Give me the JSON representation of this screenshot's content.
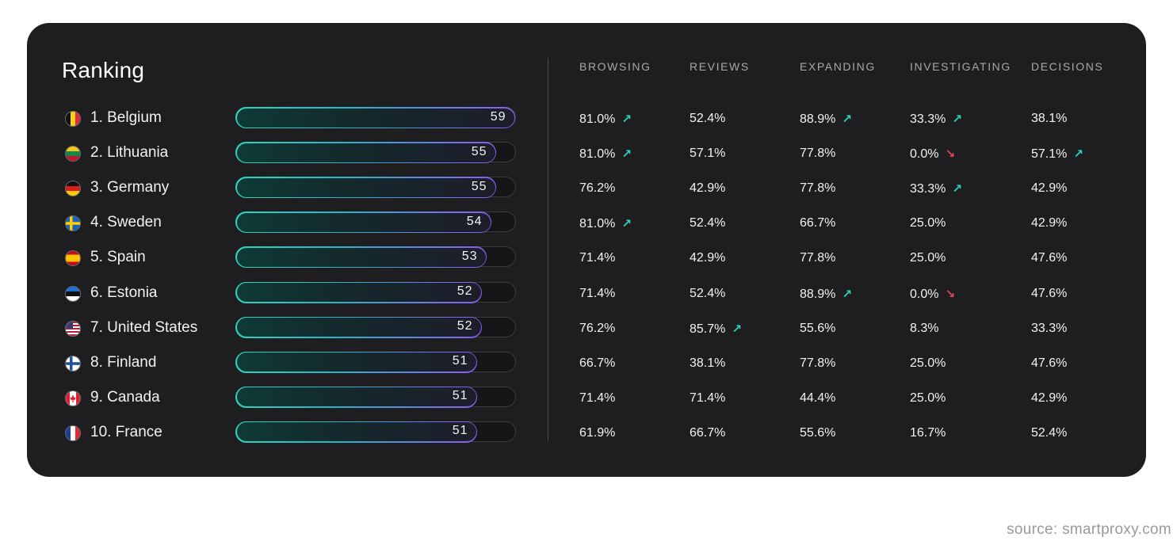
{
  "title": "Ranking",
  "source": "source: smartproxy.com",
  "colors": {
    "up": "#2ed3c0",
    "down": "#e0465e",
    "bar_start": "#2ed3c0",
    "bar_end": "#8a5cf0"
  },
  "columns": [
    "BROWSING",
    "REVIEWS",
    "EXPANDING",
    "INVESTIGATING",
    "DECISIONS"
  ],
  "chart_data": {
    "type": "bar",
    "title": "Ranking",
    "ylim": [
      0,
      59
    ],
    "categories": [
      "1. Belgium",
      "2. Lithuania",
      "3. Germany",
      "4. Sweden",
      "5. Spain",
      "6. Estonia",
      "7. United States",
      "8. Finland",
      "9. Canada",
      "10. France"
    ],
    "values": [
      59,
      55,
      55,
      54,
      53,
      52,
      52,
      51,
      51,
      51
    ]
  },
  "rows": [
    {
      "label": "1. Belgium",
      "flag": "belgium-flag-icon",
      "score": "59",
      "cells": [
        {
          "v": "81.0%",
          "t": "up"
        },
        {
          "v": "52.4%",
          "t": ""
        },
        {
          "v": "88.9%",
          "t": "up"
        },
        {
          "v": "33.3%",
          "t": "up"
        },
        {
          "v": "38.1%",
          "t": ""
        }
      ]
    },
    {
      "label": "2. Lithuania",
      "flag": "lithuania-flag-icon",
      "score": "55",
      "cells": [
        {
          "v": "81.0%",
          "t": "up"
        },
        {
          "v": "57.1%",
          "t": ""
        },
        {
          "v": "77.8%",
          "t": ""
        },
        {
          "v": "0.0%",
          "t": "down"
        },
        {
          "v": "57.1%",
          "t": "up"
        }
      ]
    },
    {
      "label": "3. Germany",
      "flag": "germany-flag-icon",
      "score": "55",
      "cells": [
        {
          "v": "76.2%",
          "t": ""
        },
        {
          "v": "42.9%",
          "t": ""
        },
        {
          "v": "77.8%",
          "t": ""
        },
        {
          "v": "33.3%",
          "t": "up"
        },
        {
          "v": "42.9%",
          "t": ""
        }
      ]
    },
    {
      "label": "4. Sweden",
      "flag": "sweden-flag-icon",
      "score": "54",
      "cells": [
        {
          "v": "81.0%",
          "t": "up"
        },
        {
          "v": "52.4%",
          "t": ""
        },
        {
          "v": "66.7%",
          "t": ""
        },
        {
          "v": "25.0%",
          "t": ""
        },
        {
          "v": "42.9%",
          "t": ""
        }
      ]
    },
    {
      "label": "5. Spain",
      "flag": "spain-flag-icon",
      "score": "53",
      "cells": [
        {
          "v": "71.4%",
          "t": ""
        },
        {
          "v": "42.9%",
          "t": ""
        },
        {
          "v": "77.8%",
          "t": ""
        },
        {
          "v": "25.0%",
          "t": ""
        },
        {
          "v": "47.6%",
          "t": ""
        }
      ]
    },
    {
      "label": "6. Estonia",
      "flag": "estonia-flag-icon",
      "score": "52",
      "cells": [
        {
          "v": "71.4%",
          "t": ""
        },
        {
          "v": "52.4%",
          "t": ""
        },
        {
          "v": "88.9%",
          "t": "up"
        },
        {
          "v": "0.0%",
          "t": "down"
        },
        {
          "v": "47.6%",
          "t": ""
        }
      ]
    },
    {
      "label": "7. United States",
      "flag": "united-states-flag-icon",
      "score": "52",
      "cells": [
        {
          "v": "76.2%",
          "t": ""
        },
        {
          "v": "85.7%",
          "t": "up"
        },
        {
          "v": "55.6%",
          "t": ""
        },
        {
          "v": "8.3%",
          "t": ""
        },
        {
          "v": "33.3%",
          "t": ""
        }
      ]
    },
    {
      "label": "8. Finland",
      "flag": "finland-flag-icon",
      "score": "51",
      "cells": [
        {
          "v": "66.7%",
          "t": ""
        },
        {
          "v": "38.1%",
          "t": ""
        },
        {
          "v": "77.8%",
          "t": ""
        },
        {
          "v": "25.0%",
          "t": ""
        },
        {
          "v": "47.6%",
          "t": ""
        }
      ]
    },
    {
      "label": "9. Canada",
      "flag": "canada-flag-icon",
      "score": "51",
      "cells": [
        {
          "v": "71.4%",
          "t": ""
        },
        {
          "v": "71.4%",
          "t": ""
        },
        {
          "v": "44.4%",
          "t": ""
        },
        {
          "v": "25.0%",
          "t": ""
        },
        {
          "v": "42.9%",
          "t": ""
        }
      ]
    },
    {
      "label": "10. France",
      "flag": "france-flag-icon",
      "score": "51",
      "cells": [
        {
          "v": "61.9%",
          "t": ""
        },
        {
          "v": "66.7%",
          "t": ""
        },
        {
          "v": "55.6%",
          "t": ""
        },
        {
          "v": "16.7%",
          "t": ""
        },
        {
          "v": "52.4%",
          "t": ""
        }
      ]
    }
  ]
}
